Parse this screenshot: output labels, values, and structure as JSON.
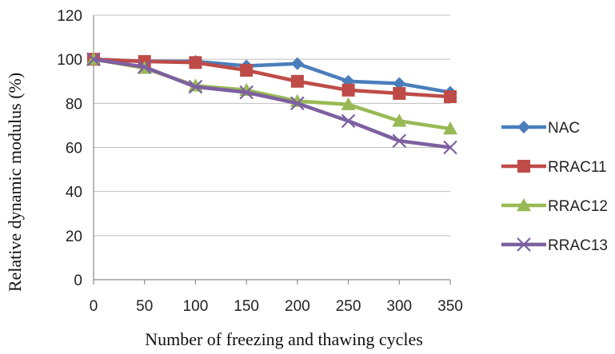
{
  "chart_data": {
    "type": "line",
    "xlabel": "Number of freezing and thawing cycles",
    "ylabel": "Relative dynamic modulus (%)",
    "categories": [
      0,
      50,
      100,
      150,
      200,
      250,
      300,
      350
    ],
    "ylim": [
      0,
      120
    ],
    "yticks": [
      0,
      20,
      40,
      60,
      80,
      100,
      120
    ],
    "grid": true,
    "legend_position": "right",
    "series": [
      {
        "name": "NAC",
        "color": "#4a7ebb",
        "marker": "diamond",
        "values": [
          100,
          99,
          99,
          97,
          98,
          90,
          89,
          85
        ]
      },
      {
        "name": "RRAC11",
        "color": "#be4b48",
        "marker": "square",
        "values": [
          100,
          99,
          98.5,
          95,
          90,
          86,
          84.5,
          83
        ]
      },
      {
        "name": "RRAC12",
        "color": "#98b954",
        "marker": "triangle",
        "values": [
          100,
          96,
          88,
          86,
          81,
          79.5,
          72,
          68.5
        ]
      },
      {
        "name": "RRAC13",
        "color": "#7d60a0",
        "marker": "x",
        "values": [
          100,
          96.5,
          87.5,
          85,
          80,
          72,
          63,
          60
        ]
      }
    ]
  }
}
